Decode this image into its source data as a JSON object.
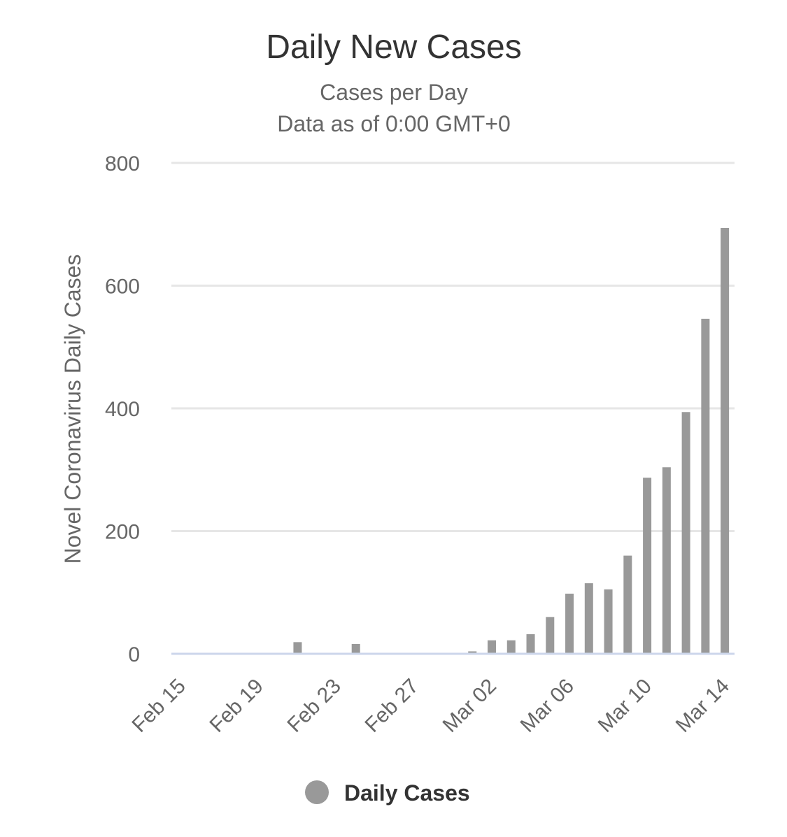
{
  "chart_data": {
    "type": "bar",
    "title": "Daily New Cases",
    "subtitle_lines": [
      "Cases per Day",
      "Data as of 0:00 GMT+0"
    ],
    "ylabel": "Novel Coronavirus Daily Cases",
    "xlabel": "",
    "ylim": [
      0,
      800
    ],
    "yticks": [
      0,
      200,
      400,
      600,
      800
    ],
    "x_tick_labels": [
      "Feb 15",
      "Feb 19",
      "Feb 23",
      "Feb 27",
      "Mar 02",
      "Mar 06",
      "Mar 10",
      "Mar 14"
    ],
    "grid": true,
    "legend_position": "bottom-center",
    "categories": [
      "Feb 15",
      "Feb 16",
      "Feb 17",
      "Feb 18",
      "Feb 19",
      "Feb 20",
      "Feb 21",
      "Feb 22",
      "Feb 23",
      "Feb 24",
      "Feb 25",
      "Feb 26",
      "Feb 27",
      "Feb 28",
      "Feb 29",
      "Mar 01",
      "Mar 02",
      "Mar 03",
      "Mar 04",
      "Mar 05",
      "Mar 06",
      "Mar 07",
      "Mar 08",
      "Mar 09",
      "Mar 10",
      "Mar 11",
      "Mar 12",
      "Mar 13",
      "Mar 14"
    ],
    "series": [
      {
        "name": "Daily Cases",
        "color": "#999999",
        "values": [
          0,
          0,
          0,
          0,
          0,
          0,
          19,
          0,
          0,
          16,
          0,
          0,
          0,
          0,
          0,
          4,
          22,
          22,
          32,
          60,
          98,
          115,
          105,
          160,
          287,
          304,
          394,
          546,
          694
        ]
      }
    ],
    "colors": {
      "bar": "#999999",
      "grid": "#e6e6e6",
      "axis": "#ccd6eb"
    }
  }
}
